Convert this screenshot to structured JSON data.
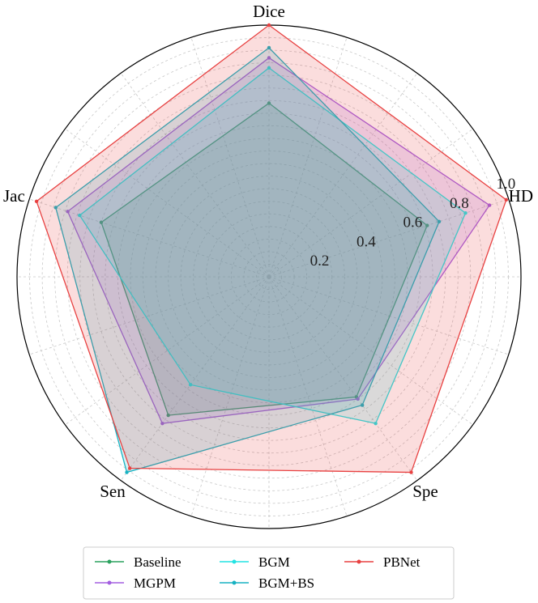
{
  "chart_data": {
    "type": "radar",
    "axes": [
      "Dice",
      "HD",
      "Spe",
      "Sen",
      "Jac"
    ],
    "rlim": [
      0,
      1.0
    ],
    "rticks": [
      0.2,
      0.4,
      0.6,
      0.8,
      1.0
    ],
    "rtick_labels": [
      "0.2",
      "0.4",
      "0.6",
      "0.8",
      "1.0"
    ],
    "grid": true,
    "legend_position": "bottom",
    "series": [
      {
        "name": "Baseline",
        "color": "#2ca25f",
        "values": [
          0.69,
          0.66,
          0.59,
          0.68,
          0.7
        ]
      },
      {
        "name": "MGPM",
        "color": "#a35ee0",
        "values": [
          0.87,
          0.92,
          0.6,
          0.72,
          0.84
        ]
      },
      {
        "name": "BGM",
        "color": "#22e3e3",
        "values": [
          0.83,
          0.82,
          0.72,
          0.53,
          0.79
        ]
      },
      {
        "name": "BGM+BS",
        "color": "#17b2c2",
        "values": [
          0.91,
          0.71,
          0.63,
          0.96,
          0.89
        ]
      },
      {
        "name": "PBNet",
        "color": "#e84141",
        "values": [
          1.0,
          0.99,
          0.96,
          0.94,
          0.97
        ]
      }
    ]
  }
}
